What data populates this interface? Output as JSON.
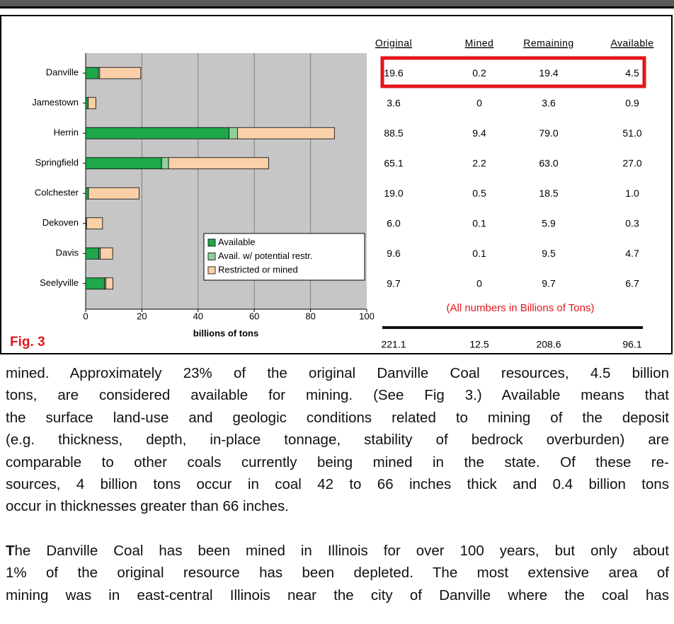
{
  "chart_data": {
    "type": "bar",
    "orientation": "horizontal",
    "stacked": true,
    "categories": [
      "Danville",
      "Jamestown",
      "Herrin",
      "Springfield",
      "Colchester",
      "Dekoven",
      "Davis",
      "Seelyville"
    ],
    "series": [
      {
        "name": "Available",
        "color": "#1fa84a",
        "values": [
          4.5,
          0.9,
          51.0,
          27.0,
          1.0,
          0.3,
          4.7,
          6.7
        ]
      },
      {
        "name": "Avail. w/ potential restr.",
        "color": "#8fd19e",
        "values": [
          0.5,
          0,
          3.0,
          2.5,
          0,
          0,
          0.5,
          0.5
        ]
      },
      {
        "name": "Restricted or mined",
        "color": "#fbd0a8",
        "values": [
          14.6,
          2.7,
          34.5,
          35.6,
          18.0,
          5.7,
          4.4,
          2.5
        ]
      }
    ],
    "xlim": [
      0,
      100
    ],
    "xticks": [
      0,
      20,
      40,
      60,
      80,
      100
    ],
    "xlabel": "billions of tons",
    "grid": true,
    "legend": "bottom-right"
  },
  "figure": "Fig. 3",
  "table": {
    "headers": [
      "Original",
      "Mined",
      "Remaining",
      "Available"
    ],
    "rows": [
      [
        "19.6",
        "0.2",
        "19.4",
        "4.5"
      ],
      [
        "3.6",
        "0",
        "3.6",
        "0.9"
      ],
      [
        "88.5",
        "9.4",
        "79.0",
        "51.0"
      ],
      [
        "65.1",
        "2.2",
        "63.0",
        "27.0"
      ],
      [
        "19.0",
        "0.5",
        "18.5",
        "1.0"
      ],
      [
        "6.0",
        "0.1",
        "5.9",
        "0.3"
      ],
      [
        "9.6",
        "0.1",
        "9.5",
        "4.7"
      ],
      [
        "9.7",
        "0",
        "9.7",
        "6.7"
      ]
    ],
    "note": "(All numbers in Billions of Tons)",
    "totals": [
      "221.1",
      "12.5",
      "208.6",
      "96.1"
    ]
  },
  "paragraphs": [
    {
      "lines": [
        "mined.  Approximately 23% of the original Danville Coal resources, 4.5 billion",
        "tons, are considered available for mining. (See Fig 3.)  Available means that",
        "the surface land-use and geologic conditions related to mining of the deposit",
        "(e.g. thickness, depth, in-place tonnage, stability of bedrock overburden) are",
        "comparable to other coals currently being mined in the state.  Of these re-",
        "sources, 4 billion tons occur in coal 42 to 66 inches thick and 0.4 billion tons",
        "occur in thicknesses greater than 66 inches."
      ]
    },
    {
      "lead": "T",
      "lines": [
        "he Danville Coal has been mined in Illinois for over 100 years, but only about",
        "1% of the original resource has been depleted. The most extensive area of",
        "mining was in east-central Illinois near the city of Danville where the coal has"
      ]
    }
  ]
}
